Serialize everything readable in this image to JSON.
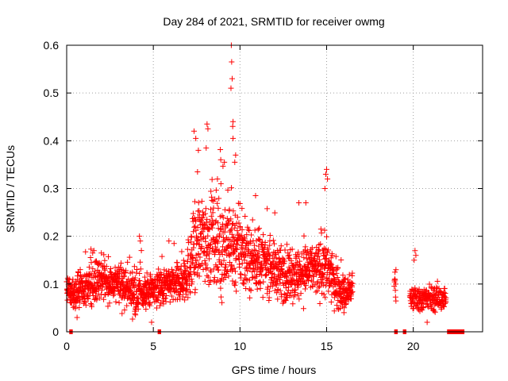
{
  "chart_data": {
    "type": "scatter",
    "title": "Day 284 of 2021, SRMTID for receiver owmg",
    "xlabel": "GPS time / hours",
    "ylabel": "SRMTID / TECUs",
    "xlim": [
      0,
      24
    ],
    "ylim": [
      0,
      0.6
    ],
    "x_ticks": [
      0,
      5,
      10,
      15,
      20
    ],
    "x_tick_labels": [
      "0",
      "5",
      "10",
      "15",
      "20"
    ],
    "y_ticks": [
      0,
      0.1,
      0.2,
      0.3,
      0.4,
      0.5,
      0.6
    ],
    "y_tick_labels": [
      "0",
      "0.1",
      "0.2",
      "0.3",
      "0.4",
      "0.5",
      "0.6"
    ],
    "grid": true,
    "marker": "+",
    "color": "#ff0000",
    "series": [
      {
        "name": "SRMTID",
        "envelope": {
          "hours": [
            0,
            0.5,
            1,
            1.5,
            2,
            2.5,
            3,
            3.5,
            4,
            4.5,
            5,
            5.5,
            6,
            6.5,
            7,
            7.5,
            8,
            8.5,
            9,
            9.5,
            10,
            10.5,
            11,
            11.5,
            12,
            12.5,
            13,
            13.5,
            14,
            14.5,
            15,
            15.5,
            16,
            16.5
          ],
          "median": [
            0.09,
            0.08,
            0.09,
            0.1,
            0.11,
            0.1,
            0.1,
            0.09,
            0.08,
            0.08,
            0.09,
            0.09,
            0.1,
            0.1,
            0.13,
            0.18,
            0.2,
            0.18,
            0.17,
            0.19,
            0.16,
            0.15,
            0.15,
            0.14,
            0.13,
            0.12,
            0.12,
            0.12,
            0.13,
            0.13,
            0.13,
            0.1,
            0.08,
            0.09
          ],
          "spread": [
            0.03,
            0.03,
            0.035,
            0.04,
            0.04,
            0.035,
            0.035,
            0.035,
            0.04,
            0.035,
            0.035,
            0.035,
            0.035,
            0.04,
            0.06,
            0.08,
            0.09,
            0.09,
            0.09,
            0.1,
            0.07,
            0.06,
            0.06,
            0.055,
            0.05,
            0.05,
            0.05,
            0.05,
            0.05,
            0.05,
            0.06,
            0.04,
            0.035,
            0.03
          ]
        },
        "late_segments": [
          {
            "start": 19.8,
            "end": 21.9,
            "median": 0.07,
            "spread": 0.025
          },
          {
            "start": 18.9,
            "end": 19.0,
            "median": 0.1,
            "spread": 0.03
          }
        ],
        "peaks": [
          {
            "x": 9.5,
            "y": 0.6
          },
          {
            "x": 9.52,
            "y": 0.565
          },
          {
            "x": 9.55,
            "y": 0.53
          },
          {
            "x": 9.48,
            "y": 0.51
          },
          {
            "x": 9.6,
            "y": 0.44
          },
          {
            "x": 9.58,
            "y": 0.43
          },
          {
            "x": 9.6,
            "y": 0.405
          },
          {
            "x": 7.35,
            "y": 0.42
          },
          {
            "x": 7.45,
            "y": 0.405
          },
          {
            "x": 8.1,
            "y": 0.435
          },
          {
            "x": 8.15,
            "y": 0.425
          },
          {
            "x": 7.6,
            "y": 0.38
          },
          {
            "x": 8.05,
            "y": 0.385
          },
          {
            "x": 9.75,
            "y": 0.37
          },
          {
            "x": 9.7,
            "y": 0.355
          },
          {
            "x": 9.1,
            "y": 0.355
          },
          {
            "x": 15.0,
            "y": 0.34
          },
          {
            "x": 14.95,
            "y": 0.33
          },
          {
            "x": 15.05,
            "y": 0.32
          },
          {
            "x": 14.9,
            "y": 0.3
          },
          {
            "x": 7.55,
            "y": 0.335
          },
          {
            "x": 8.7,
            "y": 0.32
          },
          {
            "x": 8.9,
            "y": 0.31
          },
          {
            "x": 10.9,
            "y": 0.285
          },
          {
            "x": 13.4,
            "y": 0.27
          },
          {
            "x": 13.8,
            "y": 0.27
          },
          {
            "x": 4.2,
            "y": 0.2
          },
          {
            "x": 4.25,
            "y": 0.19
          },
          {
            "x": 20.1,
            "y": 0.17
          },
          {
            "x": 20.15,
            "y": 0.16
          },
          {
            "x": 20.05,
            "y": 0.15
          },
          {
            "x": 19.0,
            "y": 0.13
          },
          {
            "x": 5.9,
            "y": 0.19
          },
          {
            "x": 1.5,
            "y": 0.165
          },
          {
            "x": 2.0,
            "y": 0.165
          },
          {
            "x": 0.6,
            "y": 0.03
          },
          {
            "x": 4.9,
            "y": 0.02
          },
          {
            "x": 20.8,
            "y": 0.02
          },
          {
            "x": 16.0,
            "y": 0.04
          }
        ]
      }
    ],
    "zero_markers": {
      "intervals": [
        [
          0.15,
          0.35
        ],
        [
          5.25,
          5.45
        ],
        [
          18.9,
          19.1
        ],
        [
          19.4,
          19.6
        ],
        [
          21.95,
          22.95
        ]
      ]
    }
  }
}
